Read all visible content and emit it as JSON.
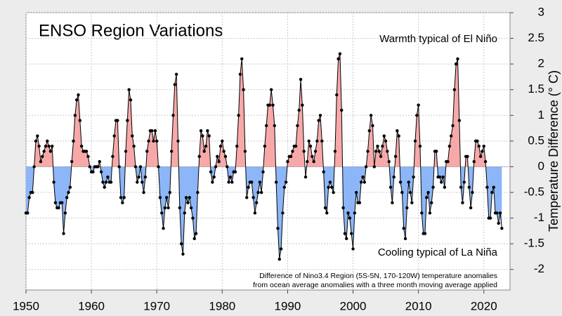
{
  "chart_data": {
    "type": "line",
    "title": "ENSO Region Variations",
    "y_label": "Temperature Difference (° C)",
    "annotations": [
      "Warmth typical of El Niño",
      "Cooling typical of La Niña",
      "Difference of Nino3.4 Region (5S-5N, 170-120W) temperature anomalies",
      "from ocean average anomalies with a three month moving average applied"
    ],
    "xlim": [
      1950,
      2024
    ],
    "xticks": [
      1950,
      1960,
      1970,
      1980,
      1990,
      2000,
      2010,
      2020
    ],
    "ylim": [
      -2.4,
      3
    ],
    "yticks": [
      -2,
      -1.5,
      -1,
      -0.5,
      0,
      0.5,
      1,
      1.5,
      2,
      2.5,
      3
    ],
    "grid": true,
    "color": "#000000",
    "above_color": "#f7a9a9",
    "below_color": "#8cb6f7",
    "x": [
      1950,
      1950.25,
      1950.5,
      1950.75,
      1951,
      1951.25,
      1951.5,
      1951.75,
      1952,
      1952.25,
      1952.5,
      1952.75,
      1953,
      1953.25,
      1953.5,
      1953.75,
      1954,
      1954.25,
      1954.5,
      1954.75,
      1955,
      1955.25,
      1955.5,
      1955.75,
      1956,
      1956.25,
      1956.5,
      1956.75,
      1957,
      1957.25,
      1957.5,
      1957.75,
      1958,
      1958.25,
      1958.5,
      1958.75,
      1959,
      1959.25,
      1959.5,
      1959.75,
      1960,
      1960.25,
      1960.5,
      1960.75,
      1961,
      1961.25,
      1961.5,
      1961.75,
      1962,
      1962.25,
      1962.5,
      1962.75,
      1963,
      1963.25,
      1963.5,
      1963.75,
      1964,
      1964.25,
      1964.5,
      1964.75,
      1965,
      1965.25,
      1965.5,
      1965.75,
      1966,
      1966.25,
      1966.5,
      1966.75,
      1967,
      1967.25,
      1967.5,
      1967.75,
      1968,
      1968.25,
      1968.5,
      1968.75,
      1969,
      1969.25,
      1969.5,
      1969.75,
      1970,
      1970.25,
      1970.5,
      1970.75,
      1971,
      1971.25,
      1971.5,
      1971.75,
      1972,
      1972.25,
      1972.5,
      1972.75,
      1973,
      1973.25,
      1973.5,
      1973.75,
      1974,
      1974.25,
      1974.5,
      1974.75,
      1975,
      1975.25,
      1975.5,
      1975.75,
      1976,
      1976.25,
      1976.5,
      1976.75,
      1977,
      1977.25,
      1977.5,
      1977.75,
      1978,
      1978.25,
      1978.5,
      1978.75,
      1979,
      1979.25,
      1979.5,
      1979.75,
      1980,
      1980.25,
      1980.5,
      1980.75,
      1981,
      1981.25,
      1981.5,
      1981.75,
      1982,
      1982.25,
      1982.5,
      1982.75,
      1983,
      1983.25,
      1983.5,
      1983.75,
      1984,
      1984.25,
      1984.5,
      1984.75,
      1985,
      1985.25,
      1985.5,
      1985.75,
      1986,
      1986.25,
      1986.5,
      1986.75,
      1987,
      1987.25,
      1987.5,
      1987.75,
      1988,
      1988.25,
      1988.5,
      1988.75,
      1989,
      1989.25,
      1989.5,
      1989.75,
      1990,
      1990.25,
      1990.5,
      1990.75,
      1991,
      1991.25,
      1991.5,
      1991.75,
      1992,
      1992.25,
      1992.5,
      1992.75,
      1993,
      1993.25,
      1993.5,
      1993.75,
      1994,
      1994.25,
      1994.5,
      1994.75,
      1995,
      1995.25,
      1995.5,
      1995.75,
      1996,
      1996.25,
      1996.5,
      1996.75,
      1997,
      1997.25,
      1997.5,
      1997.75,
      1998,
      1998.25,
      1998.5,
      1998.75,
      1999,
      1999.25,
      1999.5,
      1999.75,
      2000,
      2000.25,
      2000.5,
      2000.75,
      2001,
      2001.25,
      2001.5,
      2001.75,
      2002,
      2002.25,
      2002.5,
      2002.75,
      2003,
      2003.25,
      2003.5,
      2003.75,
      2004,
      2004.25,
      2004.5,
      2004.75,
      2005,
      2005.25,
      2005.5,
      2005.75,
      2006,
      2006.25,
      2006.5,
      2006.75,
      2007,
      2007.25,
      2007.5,
      2007.75,
      2008,
      2008.25,
      2008.5,
      2008.75,
      2009,
      2009.25,
      2009.5,
      2009.75,
      2010,
      2010.25,
      2010.5,
      2010.75,
      2011,
      2011.25,
      2011.5,
      2011.75,
      2012,
      2012.25,
      2012.5,
      2012.75,
      2013,
      2013.25,
      2013.5,
      2013.75,
      2014,
      2014.25,
      2014.5,
      2014.75,
      2015,
      2015.25,
      2015.5,
      2015.75,
      2016,
      2016.25,
      2016.5,
      2016.75,
      2017,
      2017.25,
      2017.5,
      2017.75,
      2018,
      2018.25,
      2018.5,
      2018.75,
      2019,
      2019.25,
      2019.5,
      2019.75,
      2020,
      2020.25,
      2020.5,
      2020.75,
      2021,
      2021.25,
      2021.5,
      2021.75,
      2022,
      2022.25,
      2022.5,
      2022.75
    ],
    "values": [
      -0.9,
      -0.9,
      -0.6,
      -0.5,
      -0.5,
      0.0,
      0.5,
      0.6,
      0.4,
      0.1,
      0.2,
      0.3,
      0.4,
      0.5,
      0.4,
      0.3,
      0.4,
      -0.3,
      -0.7,
      -0.8,
      -0.8,
      -0.7,
      -0.7,
      -1.3,
      -0.9,
      -0.6,
      -0.5,
      -0.4,
      0.1,
      0.5,
      1.0,
      1.3,
      1.4,
      0.9,
      0.4,
      0.3,
      0.3,
      0.3,
      0.2,
      0.0,
      -0.1,
      -0.1,
      0.0,
      0.0,
      0.0,
      0.1,
      -0.1,
      -0.3,
      -0.4,
      -0.3,
      -0.2,
      -0.3,
      -0.3,
      0.2,
      0.6,
      0.9,
      0.9,
      0.0,
      -0.6,
      -0.7,
      -0.6,
      0.3,
      0.9,
      1.5,
      1.3,
      0.6,
      0.4,
      0.0,
      -0.3,
      -0.2,
      0.0,
      -0.3,
      -0.5,
      -0.2,
      0.3,
      0.5,
      0.7,
      0.7,
      0.5,
      0.7,
      0.5,
      0.0,
      -0.6,
      -0.9,
      -1.2,
      -0.8,
      -0.6,
      -0.8,
      -0.5,
      0.3,
      1.0,
      1.6,
      1.8,
      0.5,
      -0.8,
      -1.5,
      -1.7,
      -0.9,
      -0.6,
      -0.7,
      -0.6,
      -0.8,
      -1.0,
      -1.4,
      -1.3,
      -0.5,
      0.2,
      0.7,
      0.6,
      0.3,
      0.4,
      0.7,
      0.6,
      -0.1,
      -0.3,
      -0.2,
      0.0,
      0.2,
      0.1,
      0.4,
      0.5,
      0.3,
      0.2,
      0.0,
      -0.3,
      -0.2,
      -0.3,
      -0.1,
      -0.1,
      0.4,
      1.0,
      1.8,
      2.1,
      1.5,
      0.3,
      -0.6,
      -0.4,
      -0.3,
      -0.3,
      -0.6,
      -0.9,
      -0.7,
      -0.5,
      -0.3,
      -0.5,
      -0.1,
      0.4,
      0.8,
      1.2,
      1.2,
      1.5,
      1.2,
      0.8,
      -0.3,
      -1.2,
      -1.8,
      -1.6,
      -0.9,
      -0.4,
      -0.3,
      0.1,
      0.2,
      0.2,
      0.3,
      0.4,
      0.4,
      0.8,
      1.1,
      1.7,
      1.2,
      0.3,
      -0.2,
      0.1,
      0.5,
      0.4,
      0.2,
      0.1,
      0.3,
      0.5,
      0.9,
      1.0,
      0.5,
      -0.1,
      -0.8,
      -0.9,
      -0.4,
      -0.3,
      -0.4,
      -0.5,
      0.3,
      1.4,
      2.1,
      2.2,
      1.1,
      -0.8,
      -1.3,
      -1.4,
      -0.9,
      -1.0,
      -1.3,
      -1.6,
      -0.9,
      -0.5,
      -0.7,
      -0.7,
      -0.3,
      -0.2,
      -0.3,
      0.0,
      0.3,
      0.7,
      1.0,
      0.8,
      0.0,
      0.3,
      0.4,
      0.3,
      0.2,
      0.4,
      0.6,
      0.5,
      0.3,
      0.1,
      -0.4,
      -0.7,
      -0.2,
      0.2,
      0.7,
      0.6,
      -0.3,
      -0.5,
      -1.2,
      -1.4,
      -0.8,
      -0.3,
      -0.5,
      -0.7,
      -0.2,
      0.5,
      1.0,
      1.2,
      0.4,
      -0.9,
      -1.3,
      -1.3,
      -0.6,
      -0.5,
      -0.9,
      -0.7,
      -0.4,
      0.3,
      0.3,
      -0.2,
      -0.2,
      -0.3,
      -0.2,
      -0.4,
      0.1,
      0.1,
      0.4,
      0.6,
      0.8,
      1.5,
      2.0,
      2.1,
      0.9,
      -0.4,
      -0.7,
      -0.3,
      0.2,
      0.2,
      -0.4,
      -0.8,
      -0.5,
      0.1,
      0.5,
      0.5,
      0.4,
      0.2,
      0.3,
      0.4,
      0.1,
      -0.4,
      -1.0,
      -1.0,
      -0.5,
      -0.4,
      -0.9,
      -0.9,
      -1.1,
      -0.9,
      -1.2
    ]
  }
}
